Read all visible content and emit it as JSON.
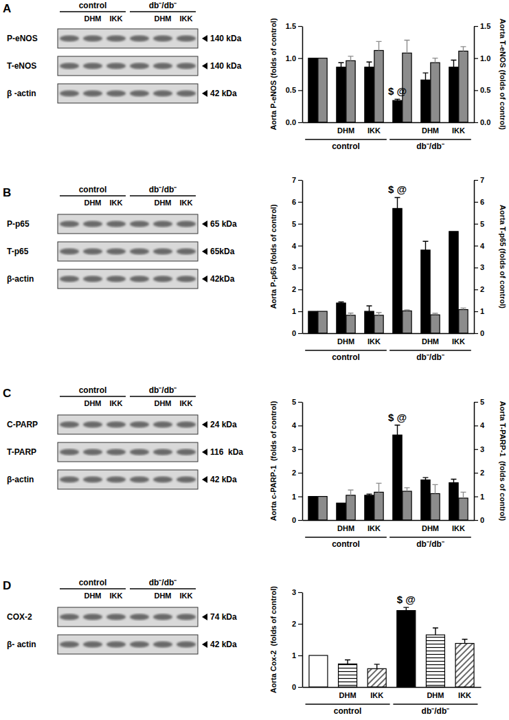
{
  "panels": [
    "A",
    "B",
    "C",
    "D"
  ],
  "blots": [
    {
      "groups": [
        "control",
        "db⁻/db⁻"
      ],
      "lanes": [
        null,
        "DHM",
        "IKK",
        null,
        "DHM",
        "IKK"
      ],
      "rows": [
        {
          "label": "P-eNOS",
          "size": "140 kDa"
        },
        {
          "label": "T-eNOS",
          "size": "140 kDa"
        },
        {
          "label": "β -actin",
          "size": "42 kDa"
        }
      ]
    },
    {
      "groups": [
        "control",
        "db⁻/db⁻"
      ],
      "lanes": [
        null,
        "DHM",
        "IKK",
        null,
        "DHM",
        "IKK"
      ],
      "rows": [
        {
          "label": "P-p65",
          "size": "65 kDa"
        },
        {
          "label": "T-p65",
          "size": "65kDa"
        },
        {
          "label": "β-actin",
          "size": "42kDa"
        }
      ]
    },
    {
      "groups": [
        "control",
        "db⁻/db⁻"
      ],
      "lanes": [
        null,
        "DHM",
        "IKK",
        null,
        "DHM",
        "IKK"
      ],
      "rows": [
        {
          "label": "C-PARP",
          "size": "24 kDa"
        },
        {
          "label": "T-PARP",
          "size": "116  kDa"
        },
        {
          "label": "β-actin",
          "size": "42 kDa"
        }
      ]
    },
    {
      "groups": [
        "control",
        "db⁻/db⁻"
      ],
      "lanes": [
        null,
        "DHM",
        "IKK",
        null,
        "DHM",
        "IKK"
      ],
      "rows": [
        {
          "label": "COX-2",
          "size": "74 kDa"
        },
        {
          "label": "β- actin",
          "size": "42 kDa"
        }
      ]
    }
  ],
  "chart_data": [
    {
      "type": "bar",
      "categories": [
        null,
        "DHM",
        "IKK",
        null,
        "DHM",
        "IKK"
      ],
      "groups": [
        "control",
        "db⁻/db⁻"
      ],
      "ylabel": "Aorta P-eNOS (folds of control)",
      "y2label": "Aorta T-eNOS (folds of control)",
      "ylim": [
        0,
        1.5
      ],
      "yticks": [
        {
          "value": 0,
          "label": "0.0"
        },
        {
          "value": 0.5,
          "label": "0.5"
        },
        {
          "value": 1,
          "label": "1.0"
        },
        {
          "value": 1.5,
          "label": "1.5"
        }
      ],
      "y2lim": [
        0,
        1.5
      ],
      "y2ticks": [
        {
          "value": 0,
          "label": "0.0"
        },
        {
          "value": 0.5,
          "label": "0.5"
        },
        {
          "value": 1,
          "label": "1.0"
        },
        {
          "value": 1.5,
          "label": "1.5"
        }
      ],
      "grid": false,
      "series": [
        {
          "color": "#000000",
          "values": [
            1.0,
            0.86,
            0.86,
            0.34,
            0.66,
            0.86
          ],
          "errors": [
            null,
            0.07,
            0.08,
            0.02,
            0.11,
            0.11
          ],
          "annotations": [
            null,
            null,
            null,
            "$ @",
            null,
            null
          ]
        },
        {
          "color": "#8c8c8c",
          "axis": "y2",
          "values": [
            1.0,
            0.96,
            1.12,
            1.08,
            0.93,
            1.11
          ],
          "errors": [
            null,
            0.07,
            0.14,
            0.2,
            0.07,
            0.07
          ]
        }
      ]
    },
    {
      "type": "bar",
      "categories": [
        null,
        "DHM",
        "IKK",
        null,
        "DHM",
        "IKK"
      ],
      "groups": [
        "control",
        "db⁻/db⁻"
      ],
      "ylabel": "Aorta P-p65 (folds of control)",
      "y2label": "Aorta T-p65 (folds of control)",
      "ylim": [
        0,
        7
      ],
      "yticks": [
        0,
        1,
        2,
        3,
        4,
        5,
        6,
        7
      ],
      "y2lim": [
        0,
        7
      ],
      "y2ticks": [
        0,
        1,
        2,
        3,
        4,
        5,
        6,
        7
      ],
      "grid": false,
      "series": [
        {
          "color": "#000000",
          "values": [
            1.0,
            1.38,
            1.0,
            5.7,
            3.8,
            4.65
          ],
          "errors": [
            null,
            0.05,
            0.25,
            0.5,
            0.4,
            null
          ],
          "annotations": [
            null,
            null,
            null,
            "$ @",
            null,
            null
          ]
        },
        {
          "color": "#8c8c8c",
          "axis": "y2",
          "values": [
            1.0,
            0.82,
            0.82,
            1.02,
            0.84,
            1.08
          ],
          "errors": [
            null,
            0.1,
            0.12,
            0.05,
            0.07,
            0.07
          ]
        }
      ]
    },
    {
      "type": "bar",
      "categories": [
        null,
        "DHM",
        "IKK",
        null,
        "DHM",
        "IKK"
      ],
      "groups": [
        "control",
        "db⁻/db⁻"
      ],
      "ylabel": "Aorta c-PARP-1  (folds of control)",
      "y2label": "Aorta T-PARP-1  (folds of control)",
      "ylim": [
        0,
        5
      ],
      "yticks": [
        0,
        1,
        2,
        3,
        4,
        5
      ],
      "y2lim": [
        0,
        5
      ],
      "y2ticks": [
        0,
        1,
        2,
        3,
        4,
        5
      ],
      "grid": false,
      "series": [
        {
          "color": "#000000",
          "values": [
            1.0,
            0.72,
            1.05,
            3.6,
            1.7,
            1.58
          ],
          "errors": [
            null,
            null,
            0.05,
            0.42,
            0.1,
            0.15
          ],
          "annotations": [
            null,
            null,
            null,
            "$ @",
            null,
            null
          ]
        },
        {
          "color": "#8c8c8c",
          "axis": "y2",
          "values": [
            1.0,
            1.05,
            1.18,
            1.22,
            1.12,
            0.93
          ],
          "errors": [
            null,
            0.22,
            0.38,
            0.15,
            0.38,
            0.25
          ]
        }
      ]
    },
    {
      "type": "bar",
      "categories": [
        null,
        "DHM",
        "IKK",
        null,
        "DHM",
        "IKK"
      ],
      "groups": [
        "control",
        "db⁻/db⁻"
      ],
      "ylabel": "Aorta Cox-2  (folds of control)",
      "ylim": [
        0,
        3
      ],
      "yticks": [
        0,
        1,
        2,
        3
      ],
      "grid": false,
      "series": [
        {
          "colors": [
            "#ffffff",
            "#ffffff",
            "#ffffff",
            "#000000",
            "#ffffff",
            "#ffffff"
          ],
          "values": [
            1.0,
            0.73,
            0.58,
            2.42,
            1.65,
            1.38
          ],
          "errors": [
            null,
            0.13,
            0.14,
            0.1,
            0.22,
            0.13
          ],
          "annotations": [
            null,
            null,
            null,
            "$ @",
            null,
            null
          ]
        }
      ]
    }
  ]
}
